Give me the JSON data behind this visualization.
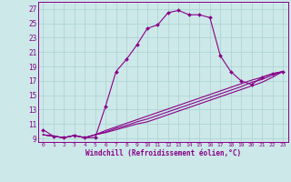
{
  "xlabel": "Windchill (Refroidissement éolien,°C)",
  "bg_color": "#cce8e8",
  "grid_color": "#aad0d0",
  "line_color": "#880088",
  "xlim": [
    -0.5,
    23.5
  ],
  "ylim": [
    8.5,
    28.0
  ],
  "yticks": [
    9,
    11,
    13,
    15,
    17,
    19,
    21,
    23,
    25,
    27
  ],
  "xticks": [
    0,
    1,
    2,
    3,
    4,
    5,
    6,
    7,
    8,
    9,
    10,
    11,
    12,
    13,
    14,
    15,
    16,
    17,
    18,
    19,
    20,
    21,
    22,
    23
  ],
  "curve1_x": [
    0,
    1,
    2,
    3,
    4,
    5,
    6,
    7,
    8,
    9,
    10,
    11,
    12,
    13,
    14,
    15,
    16,
    17,
    18,
    19,
    20,
    21,
    22,
    23
  ],
  "curve1_y": [
    10.2,
    9.3,
    9.1,
    9.4,
    9.1,
    9.1,
    13.5,
    18.3,
    20.0,
    22.0,
    24.3,
    24.8,
    26.5,
    26.8,
    26.2,
    26.2,
    25.8,
    20.5,
    18.3,
    17.0,
    16.5,
    17.5,
    18.0,
    18.3
  ],
  "curve2_x": [
    0,
    1,
    2,
    3,
    4,
    5,
    6,
    7,
    8,
    9,
    10,
    11,
    12,
    13,
    14,
    15,
    16,
    17,
    18,
    19,
    20,
    21,
    22,
    23
  ],
  "curve2_y": [
    9.5,
    9.3,
    9.1,
    9.4,
    9.1,
    9.5,
    9.8,
    10.2,
    10.6,
    11.0,
    11.3,
    11.8,
    12.3,
    12.8,
    13.3,
    13.8,
    14.3,
    14.8,
    15.3,
    15.8,
    16.3,
    16.8,
    17.5,
    18.3
  ],
  "curve3_x": [
    0,
    1,
    2,
    3,
    4,
    5,
    6,
    7,
    8,
    9,
    10,
    11,
    12,
    13,
    14,
    15,
    16,
    17,
    18,
    19,
    20,
    21,
    22,
    23
  ],
  "curve3_y": [
    9.5,
    9.3,
    9.1,
    9.4,
    9.1,
    9.5,
    9.9,
    10.4,
    10.8,
    11.3,
    11.7,
    12.2,
    12.7,
    13.2,
    13.7,
    14.2,
    14.7,
    15.2,
    15.7,
    16.2,
    16.8,
    17.2,
    17.8,
    18.3
  ],
  "curve4_x": [
    0,
    1,
    2,
    3,
    4,
    5,
    6,
    7,
    8,
    9,
    10,
    11,
    12,
    13,
    14,
    15,
    16,
    17,
    18,
    19,
    20,
    21,
    22,
    23
  ],
  "curve4_y": [
    9.5,
    9.3,
    9.1,
    9.4,
    9.1,
    9.5,
    10.1,
    10.6,
    11.1,
    11.6,
    12.1,
    12.6,
    13.1,
    13.6,
    14.1,
    14.6,
    15.1,
    15.6,
    16.1,
    16.6,
    17.1,
    17.5,
    18.0,
    18.3
  ]
}
